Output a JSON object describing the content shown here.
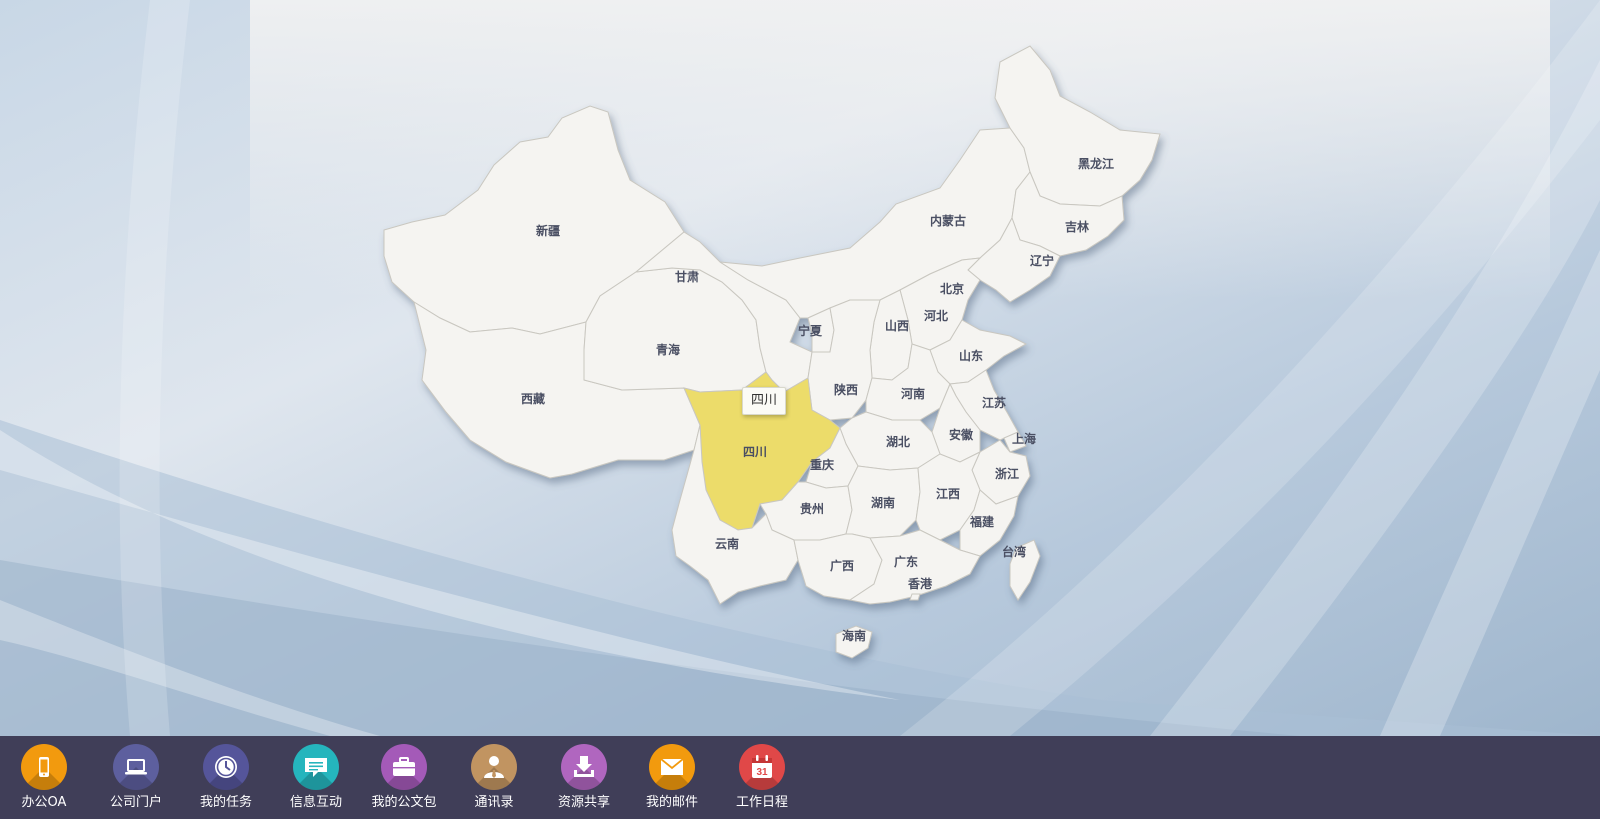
{
  "map": {
    "highlight_color": "#ecdc6a",
    "region_fill": "#f5f4f1",
    "tooltip": "四川",
    "provinces": [
      {
        "id": "xinjiang",
        "name": "新疆"
      },
      {
        "id": "xizang",
        "name": "西藏"
      },
      {
        "id": "qinghai",
        "name": "青海"
      },
      {
        "id": "gansu",
        "name": "甘肃"
      },
      {
        "id": "neimenggu",
        "name": "内蒙古"
      },
      {
        "id": "heilongjiang",
        "name": "黑龙江"
      },
      {
        "id": "jilin",
        "name": "吉林"
      },
      {
        "id": "liaoning",
        "name": "辽宁"
      },
      {
        "id": "beijing",
        "name": "北京"
      },
      {
        "id": "hebei",
        "name": "河北"
      },
      {
        "id": "shanxi",
        "name": "山西"
      },
      {
        "id": "ningxia",
        "name": "宁夏"
      },
      {
        "id": "shandong",
        "name": "山东"
      },
      {
        "id": "shaanxi",
        "name": "陕西"
      },
      {
        "id": "henan",
        "name": "河南"
      },
      {
        "id": "jiangsu",
        "name": "江苏"
      },
      {
        "id": "shanghai",
        "name": "上海"
      },
      {
        "id": "anhui",
        "name": "安徽"
      },
      {
        "id": "hubei",
        "name": "湖北"
      },
      {
        "id": "sichuan",
        "name": "四川"
      },
      {
        "id": "chongqing",
        "name": "重庆"
      },
      {
        "id": "zhejiang",
        "name": "浙江"
      },
      {
        "id": "guizhou",
        "name": "贵州"
      },
      {
        "id": "hunan",
        "name": "湖南"
      },
      {
        "id": "jiangxi",
        "name": "江西"
      },
      {
        "id": "fujian",
        "name": "福建"
      },
      {
        "id": "yunnan",
        "name": "云南"
      },
      {
        "id": "guangxi",
        "name": "广西"
      },
      {
        "id": "guangdong",
        "name": "广东"
      },
      {
        "id": "taiwan",
        "name": "台湾"
      },
      {
        "id": "xianggang",
        "name": "香港"
      },
      {
        "id": "hainan",
        "name": "海南"
      }
    ]
  },
  "dock": {
    "items": [
      {
        "label": "办公OA",
        "icon": "phone-icon",
        "color": "#f29a0e"
      },
      {
        "label": "公司门户",
        "icon": "laptop-icon",
        "color": "#5d5f9e"
      },
      {
        "label": "我的任务",
        "icon": "clock-icon",
        "color": "#55559a"
      },
      {
        "label": "信息互动",
        "icon": "chat-icon",
        "color": "#25b5bd"
      },
      {
        "label": "我的公文包",
        "icon": "briefcase-icon",
        "color": "#a45ab8"
      },
      {
        "label": "通讯录",
        "icon": "contact-icon",
        "color": "#c19461"
      },
      {
        "label": "资源共享",
        "icon": "download-icon",
        "color": "#b066bf"
      },
      {
        "label": "我的邮件",
        "icon": "mail-icon",
        "color": "#f29a0e"
      },
      {
        "label": "工作日程",
        "icon": "calendar-icon",
        "color": "#e04848"
      }
    ]
  }
}
